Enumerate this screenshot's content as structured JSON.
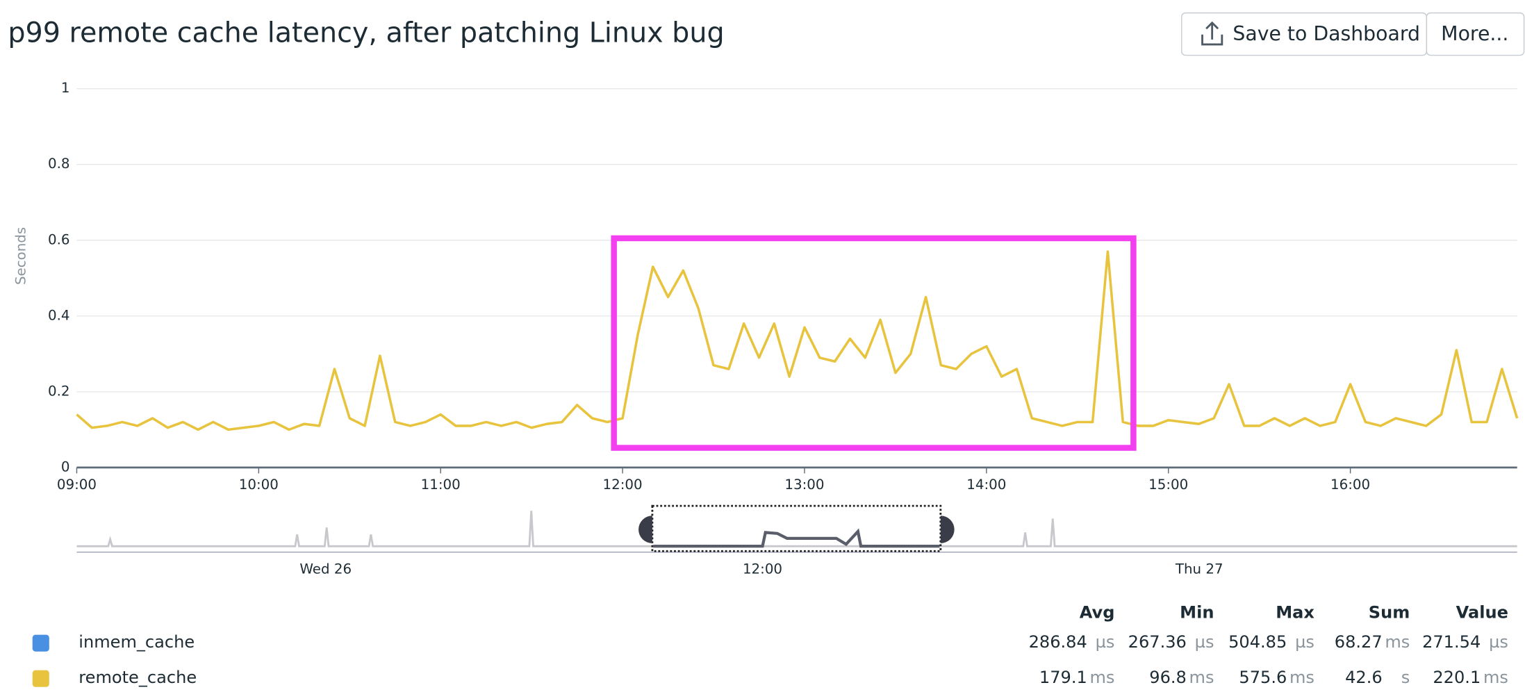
{
  "chart_data": {
    "type": "line",
    "title": "p99 remote cache latency, after patching Linux bug",
    "y_label": "Seconds",
    "x": [
      "09:00",
      "09:05",
      "09:10",
      "09:15",
      "09:20",
      "09:25",
      "09:30",
      "09:35",
      "09:40",
      "09:45",
      "09:50",
      "09:55",
      "10:00",
      "10:05",
      "10:10",
      "10:15",
      "10:20",
      "10:25",
      "10:30",
      "10:35",
      "10:40",
      "10:45",
      "10:50",
      "10:55",
      "11:00",
      "11:05",
      "11:10",
      "11:15",
      "11:20",
      "11:25",
      "11:30",
      "11:35",
      "11:40",
      "11:45",
      "11:50",
      "11:55",
      "12:00",
      "12:05",
      "12:10",
      "12:15",
      "12:20",
      "12:25",
      "12:30",
      "12:35",
      "12:40",
      "12:45",
      "12:50",
      "12:55",
      "13:00",
      "13:05",
      "13:10",
      "13:15",
      "13:20",
      "13:25",
      "13:30",
      "13:35",
      "13:40",
      "13:45",
      "13:50",
      "13:55",
      "14:00",
      "14:05",
      "14:10",
      "14:15",
      "14:20",
      "14:25",
      "14:30",
      "14:35",
      "14:40",
      "14:45",
      "14:50",
      "14:55",
      "15:00",
      "15:05",
      "15:10",
      "15:15",
      "15:20",
      "15:25",
      "15:30",
      "15:35",
      "15:40",
      "15:45",
      "15:50",
      "15:55",
      "16:00",
      "16:05",
      "16:10",
      "16:15",
      "16:20",
      "16:25",
      "16:30",
      "16:35",
      "16:40",
      "16:45",
      "16:50",
      "16:55"
    ],
    "series": [
      {
        "name": "remote_cache",
        "color": "#e8c33e",
        "values": [
          0.14,
          0.105,
          0.11,
          0.12,
          0.11,
          0.13,
          0.105,
          0.12,
          0.1,
          0.12,
          0.1,
          0.105,
          0.11,
          0.12,
          0.1,
          0.115,
          0.11,
          0.26,
          0.13,
          0.11,
          0.295,
          0.12,
          0.11,
          0.12,
          0.14,
          0.11,
          0.11,
          0.12,
          0.11,
          0.12,
          0.105,
          0.115,
          0.12,
          0.165,
          0.13,
          0.12,
          0.13,
          0.35,
          0.53,
          0.45,
          0.52,
          0.42,
          0.27,
          0.26,
          0.38,
          0.29,
          0.38,
          0.24,
          0.37,
          0.29,
          0.28,
          0.34,
          0.29,
          0.39,
          0.25,
          0.3,
          0.45,
          0.27,
          0.26,
          0.3,
          0.32,
          0.24,
          0.26,
          0.13,
          0.12,
          0.11,
          0.12,
          0.12,
          0.57,
          0.12,
          0.11,
          0.11,
          0.125,
          0.12,
          0.115,
          0.13,
          0.22,
          0.11,
          0.11,
          0.13,
          0.11,
          0.13,
          0.11,
          0.12,
          0.22,
          0.12,
          0.11,
          0.13,
          0.12,
          0.11,
          0.14,
          0.31,
          0.12,
          0.12,
          0.26,
          0.13
        ]
      }
    ],
    "xlim": [
      "09:00",
      "16:55"
    ],
    "xticks": [
      "09:00",
      "10:00",
      "11:00",
      "12:00",
      "13:00",
      "14:00",
      "15:00",
      "16:00"
    ],
    "ylim": [
      0,
      1
    ],
    "yticks": [
      0,
      0.2,
      0.4,
      0.6,
      0.8,
      1
    ],
    "grid": true,
    "overview_labels": [
      "Wed 26",
      "12:00",
      "Thu 27"
    ]
  },
  "buttons": [
    "Save to Dashboard",
    "More..."
  ],
  "legend": {
    "columns": [
      "Avg",
      "Min",
      "Max",
      "Sum",
      "Value"
    ],
    "rows": [
      {
        "name": "inmem_cache",
        "color": "#4a90e2",
        "stats": [
          {
            "value": 286.84,
            "unit": "µs"
          },
          {
            "value": 267.36,
            "unit": "µs"
          },
          {
            "value": 504.85,
            "unit": "µs"
          },
          {
            "value": 68.27,
            "unit": "ms"
          },
          {
            "value": 271.54,
            "unit": "µs"
          }
        ]
      },
      {
        "stats": [
          {
            "value": 179.1,
            "unit": "ms"
          },
          {
            "value": 96.8,
            "unit": "ms"
          },
          {
            "value": 575.6,
            "unit": "ms"
          },
          {
            "value": 42.6,
            "unit": "s"
          },
          {
            "value": 220.1,
            "unit": "ms"
          }
        ]
      }
    ]
  }
}
